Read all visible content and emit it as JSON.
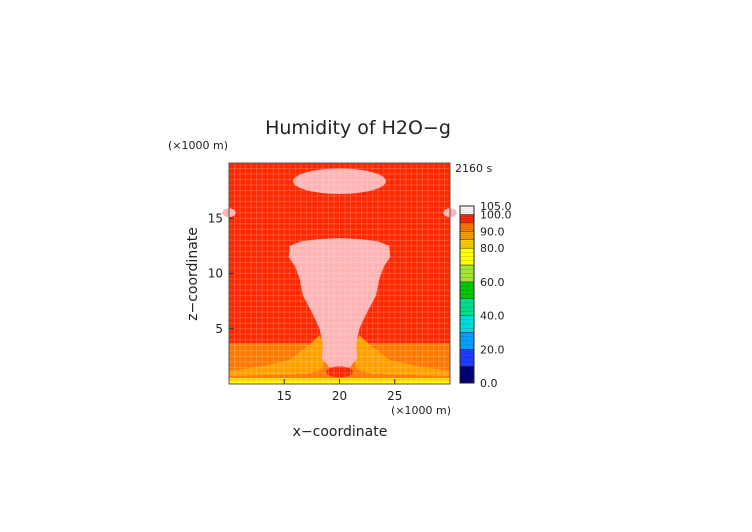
{
  "chart_data": {
    "type": "heatmap",
    "title": "Humidity of H2O−g",
    "xlabel": "x−coordinate",
    "ylabel": "z−coordinate",
    "x_unit": "(×1000 m)",
    "z_unit": "(×1000 m)",
    "time_label": "2160 s",
    "xlim": [
      10,
      30
    ],
    "zlim": [
      0,
      20
    ],
    "x_ticks": [
      15,
      20,
      25
    ],
    "z_ticks": [
      5,
      10,
      15
    ],
    "colorbar": {
      "levels": [
        0,
        10,
        20,
        30,
        40,
        50,
        60,
        70,
        80,
        85,
        90,
        95,
        100,
        105
      ],
      "tick_labels": [
        "0.0",
        "20.0",
        "40.0",
        "60.0",
        "80.0",
        "90.0",
        "100.0",
        "105.0"
      ],
      "colors": [
        "#000078",
        "#1e3cff",
        "#00a0ff",
        "#00dcdc",
        "#00dc8c",
        "#00c800",
        "#a0e632",
        "#ffff00",
        "#ffd200",
        "#ffa000",
        "#ff7800",
        "#ff2800",
        "#ffffff"
      ]
    },
    "regions": [
      {
        "name": "background",
        "humidity": 97
      },
      {
        "name": "surface-layer",
        "z_range": [
          0,
          0.5
        ],
        "humidity": 75
      },
      {
        "name": "outflow-layer",
        "z_range": [
          0.5,
          4
        ],
        "humidity": 88
      },
      {
        "name": "cloud-top-cap",
        "center": [
          20,
          18.5
        ],
        "humidity": 101
      },
      {
        "name": "anvil-and-updraft",
        "center": [
          20,
          9
        ],
        "humidity": 101
      },
      {
        "name": "edge-patch-left",
        "center": [
          10,
          15.5
        ],
        "humidity": 101
      },
      {
        "name": "edge-patch-right",
        "center": [
          30,
          15.5
        ],
        "humidity": 101
      }
    ],
    "grid": true
  }
}
